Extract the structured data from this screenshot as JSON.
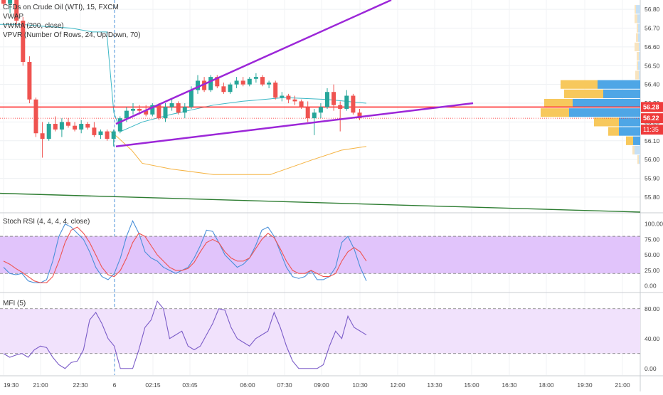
{
  "header": {
    "symbol_line": "CFDs on Crude Oil (WTI), 15, FXCM",
    "indicator_1": "VWAP",
    "indicator_2": "VWMA (200, close)",
    "indicator_3": "VPVR (Number Of Rows, 24, Up/Down, 70)"
  },
  "colors": {
    "up": "#26a69a",
    "down": "#ef5350",
    "channel": "#9c27d8",
    "horizontal_line": "#ff1f1f",
    "trendline_green": "#2e7d32",
    "vwap": "#f5b342",
    "vwma": "#3ab7c5",
    "rsi_fill": "#e1c4fb",
    "stoch_k": "#4a90d9",
    "stoch_d": "#ef5350",
    "mfi_line": "#7b5cc8",
    "mfi_fill": "#f1e2fc",
    "price_badge_red": "#ef3b3b"
  },
  "price_badges": {
    "level_line": "56.28",
    "last_price": "56.22",
    "countdown": "11:35"
  },
  "chart_data": [
    {
      "type": "candlestick",
      "title": "CFDs on Crude Oil (WTI), 15, FXCM",
      "y_ticks": [
        "56.80",
        "56.70",
        "56.60",
        "56.50",
        "56.40",
        "56.30",
        "56.20",
        "56.10",
        "56.00",
        "55.90",
        "55.80"
      ],
      "ylim": [
        55.72,
        56.85
      ],
      "x_ticks": [
        "19:30",
        "21:00",
        "22:30",
        "6",
        "02:15",
        "03:45",
        "06:00",
        "07:30",
        "09:00",
        "10:30",
        "12:00",
        "13:30",
        "15:00",
        "16:30",
        "18:00",
        "19:30",
        "21:00"
      ],
      "candles_ohlc": [
        [
          56.85,
          56.86,
          56.82,
          56.83
        ],
        [
          56.83,
          56.86,
          56.78,
          56.85
        ],
        [
          56.85,
          56.86,
          56.72,
          56.74
        ],
        [
          56.74,
          56.76,
          56.5,
          56.52
        ],
        [
          56.52,
          56.55,
          56.3,
          56.32
        ],
        [
          56.32,
          56.33,
          56.12,
          56.14
        ],
        [
          56.14,
          56.2,
          56.01,
          56.11
        ],
        [
          56.11,
          56.2,
          56.1,
          56.19
        ],
        [
          56.19,
          56.23,
          56.15,
          56.16
        ],
        [
          56.16,
          56.22,
          56.12,
          56.2
        ],
        [
          56.2,
          56.22,
          56.17,
          56.18
        ],
        [
          56.18,
          56.2,
          56.15,
          56.16
        ],
        [
          56.16,
          56.21,
          56.14,
          56.19
        ],
        [
          56.19,
          56.2,
          56.16,
          56.17
        ],
        [
          56.17,
          56.2,
          56.12,
          56.13
        ],
        [
          56.13,
          56.16,
          56.11,
          56.15
        ],
        [
          56.15,
          56.16,
          56.1,
          56.11
        ],
        [
          56.11,
          56.16,
          56.07,
          56.15
        ],
        [
          56.15,
          56.23,
          56.14,
          56.22
        ],
        [
          56.22,
          56.28,
          56.2,
          56.26
        ],
        [
          56.26,
          56.3,
          56.24,
          56.27
        ],
        [
          56.27,
          56.29,
          56.24,
          56.26
        ],
        [
          56.26,
          56.29,
          56.23,
          56.24
        ],
        [
          56.24,
          56.3,
          56.23,
          56.29
        ],
        [
          56.29,
          56.3,
          56.21,
          56.22
        ],
        [
          56.22,
          56.3,
          56.2,
          56.28
        ],
        [
          56.28,
          56.32,
          56.26,
          56.3
        ],
        [
          56.3,
          56.31,
          56.24,
          56.25
        ],
        [
          56.25,
          56.3,
          56.22,
          56.28
        ],
        [
          56.28,
          56.39,
          56.27,
          56.37
        ],
        [
          56.37,
          56.45,
          56.35,
          56.42
        ],
        [
          56.42,
          56.44,
          56.36,
          56.37
        ],
        [
          56.37,
          56.45,
          56.36,
          56.44
        ],
        [
          56.44,
          56.45,
          56.38,
          56.39
        ],
        [
          56.39,
          56.41,
          56.35,
          56.36
        ],
        [
          56.36,
          56.41,
          56.35,
          56.4
        ],
        [
          56.4,
          56.44,
          56.38,
          56.42
        ],
        [
          56.42,
          56.44,
          56.39,
          56.4
        ],
        [
          56.4,
          56.44,
          56.39,
          56.43
        ],
        [
          56.43,
          56.46,
          56.41,
          56.44
        ],
        [
          56.44,
          56.45,
          56.39,
          56.4
        ],
        [
          56.4,
          56.42,
          56.38,
          56.41
        ],
        [
          56.41,
          56.42,
          56.32,
          56.33
        ],
        [
          56.33,
          56.36,
          56.31,
          56.34
        ],
        [
          56.34,
          56.35,
          56.3,
          56.32
        ],
        [
          56.32,
          56.34,
          56.29,
          56.31
        ],
        [
          56.31,
          56.32,
          56.27,
          56.28
        ],
        [
          56.28,
          56.31,
          56.2,
          56.22
        ],
        [
          56.22,
          56.27,
          56.13,
          56.25
        ],
        [
          56.25,
          56.3,
          56.22,
          56.28
        ],
        [
          56.28,
          56.38,
          56.27,
          56.36
        ],
        [
          56.36,
          56.4,
          56.26,
          56.29
        ],
        [
          56.29,
          56.31,
          56.15,
          56.27
        ],
        [
          56.27,
          56.37,
          56.26,
          56.34
        ],
        [
          56.34,
          56.35,
          56.24,
          56.25
        ],
        [
          56.25,
          56.27,
          56.21,
          56.22
        ]
      ],
      "vwap": [
        [
          155,
          56.15
        ],
        [
          165,
          56.12
        ],
        [
          185,
          56.05
        ],
        [
          200,
          55.98
        ],
        [
          240,
          55.95
        ],
        [
          300,
          55.92
        ],
        [
          380,
          55.92
        ],
        [
          440,
          56.0
        ],
        [
          480,
          56.05
        ],
        [
          515,
          56.07
        ]
      ],
      "vwma": [
        [
          0,
          56.72
        ],
        [
          30,
          56.72
        ],
        [
          60,
          56.71
        ],
        [
          100,
          56.7
        ],
        [
          130,
          56.68
        ],
        [
          150,
          56.68
        ],
        [
          160,
          56.25
        ],
        [
          170,
          56.15
        ],
        [
          200,
          56.2
        ],
        [
          240,
          56.24
        ],
        [
          300,
          56.29
        ],
        [
          340,
          56.31
        ],
        [
          400,
          56.33
        ],
        [
          460,
          56.32
        ],
        [
          515,
          56.3
        ]
      ],
      "channel_upper": [
        [
          163,
          56.19
        ],
        [
          550,
          56.85
        ]
      ],
      "channel_lower": [
        [
          163,
          56.07
        ],
        [
          665,
          56.3
        ]
      ],
      "horizontal_level": 56.28,
      "green_trendline": [
        [
          0,
          55.82
        ],
        [
          900,
          55.72
        ]
      ],
      "vpvr_profile": [
        {
          "price": 56.8,
          "up": 2,
          "down": 6
        },
        {
          "price": 56.75,
          "up": 4,
          "down": 4
        },
        {
          "price": 56.7,
          "up": 2,
          "down": 3
        },
        {
          "price": 56.65,
          "up": 3,
          "down": 3
        },
        {
          "price": 56.6,
          "up": 6,
          "down": 2
        },
        {
          "price": 56.55,
          "up": 3,
          "down": 2
        },
        {
          "price": 56.5,
          "up": 2,
          "down": 3
        },
        {
          "price": 56.45,
          "up": 5,
          "down": 2
        },
        {
          "price": 56.4,
          "up": 52,
          "down": 60
        },
        {
          "price": 56.35,
          "up": 55,
          "down": 52
        },
        {
          "price": 56.3,
          "up": 40,
          "down": 95
        },
        {
          "price": 56.25,
          "up": 40,
          "down": 100
        },
        {
          "price": 56.2,
          "up": 35,
          "down": 30
        },
        {
          "price": 56.15,
          "up": 15,
          "down": 30
        },
        {
          "price": 56.1,
          "up": 10,
          "down": 10
        },
        {
          "price": 56.05,
          "up": 3,
          "down": 8
        },
        {
          "price": 56.0,
          "up": 2,
          "down": 2
        }
      ]
    },
    {
      "type": "line",
      "title": "Stoch RSI (4, 4, 4, 4, close)",
      "y_ticks": [
        "100.00",
        "75.00",
        "50.00",
        "25.00",
        "0.00"
      ],
      "ylim": [
        -5,
        110
      ],
      "band": [
        20,
        80
      ],
      "series": [
        {
          "name": "K",
          "values": [
            30,
            20,
            18,
            20,
            8,
            5,
            5,
            10,
            40,
            80,
            100,
            95,
            85,
            75,
            55,
            30,
            15,
            10,
            20,
            45,
            80,
            105,
            85,
            55,
            45,
            40,
            30,
            25,
            20,
            25,
            30,
            45,
            65,
            90,
            88,
            70,
            50,
            40,
            30,
            35,
            45,
            65,
            90,
            95,
            80,
            55,
            30,
            15,
            12,
            15,
            25,
            10,
            10,
            15,
            30,
            70,
            80,
            60,
            30,
            8
          ]
        },
        {
          "name": "D",
          "values": [
            40,
            35,
            28,
            22,
            15,
            8,
            5,
            5,
            15,
            40,
            70,
            90,
            95,
            85,
            70,
            50,
            30,
            18,
            15,
            25,
            45,
            70,
            85,
            80,
            65,
            50,
            40,
            30,
            25,
            25,
            28,
            38,
            55,
            70,
            75,
            70,
            55,
            45,
            40,
            40,
            45,
            60,
            75,
            85,
            78,
            60,
            40,
            25,
            20,
            20,
            25,
            20,
            15,
            15,
            20,
            40,
            55,
            62,
            55,
            40
          ]
        }
      ]
    },
    {
      "type": "line",
      "title": "MFI (5)",
      "y_ticks": [
        "80.00",
        "40.00",
        "0.00"
      ],
      "ylim": [
        -5,
        95
      ],
      "band": [
        20,
        80
      ],
      "series": [
        {
          "name": "MFI",
          "values": [
            20,
            15,
            18,
            20,
            15,
            25,
            30,
            28,
            15,
            5,
            0,
            8,
            10,
            25,
            65,
            75,
            60,
            40,
            30,
            0,
            0,
            0,
            25,
            55,
            65,
            90,
            80,
            40,
            45,
            50,
            30,
            25,
            30,
            45,
            60,
            80,
            78,
            55,
            40,
            35,
            30,
            40,
            45,
            50,
            75,
            55,
            30,
            10,
            0,
            0,
            0,
            0,
            5,
            30,
            50,
            40,
            70,
            55,
            50,
            45
          ]
        }
      ]
    }
  ]
}
